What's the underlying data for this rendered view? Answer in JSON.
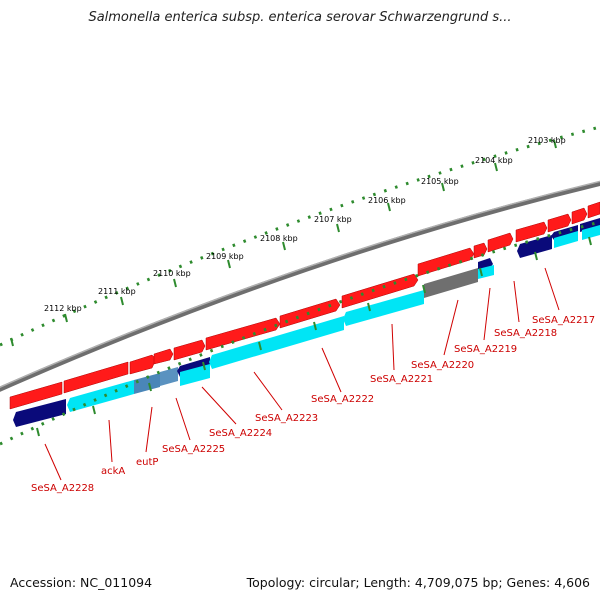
{
  "title": "Salmonella enterica subsp. enterica serovar Schwarzengrund s...",
  "accession": "Accession: NC_011094",
  "stats": "Topology: circular; Length: 4,709,075 bp; Genes: 4,606",
  "colors": {
    "backbone": "#808080",
    "cds_forward": "#ff0000",
    "cds_reverse": "#00ffff",
    "cds_dark": "#000080",
    "cds_gray": "#707070",
    "cds_steel": "#4682b4",
    "tick": "#2e8b2e",
    "label": "#cc0000"
  },
  "ruler_labels": [
    "2103 kbp",
    "2104 kbp",
    "2105 kbp",
    "2106 kbp",
    "2107 kbp",
    "2108 kbp",
    "2109 kbp",
    "2110 kbp",
    "2111 kbp",
    "2112 kbp"
  ],
  "gene_labels": [
    "SeSA_A2217",
    "SeSA_A2218",
    "SeSA_A2219",
    "SeSA_A2220",
    "SeSA_A2221",
    "SeSA_A2222",
    "SeSA_A2223",
    "SeSA_A2224",
    "SeSA_A2225",
    "eutP",
    "ackA",
    "SeSA_A2228"
  ]
}
